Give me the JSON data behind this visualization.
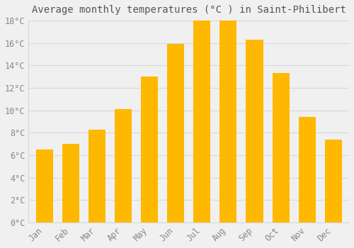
{
  "months": [
    "Jan",
    "Feb",
    "Mar",
    "Apr",
    "May",
    "Jun",
    "Jul",
    "Aug",
    "Sep",
    "Oct",
    "Nov",
    "Dec"
  ],
  "values": [
    6.5,
    7.0,
    8.3,
    10.1,
    13.0,
    15.9,
    18.0,
    18.0,
    16.3,
    13.3,
    9.4,
    7.4
  ],
  "bar_color_top": "#FFB800",
  "bar_color_bot": "#FFD060",
  "background_color": "#F0F0F0",
  "grid_color": "#D8D8D8",
  "title": "Average monthly temperatures (°C ) in Saint-Philibert",
  "title_fontsize": 10,
  "tick_label_color": "#888888",
  "title_color": "#555555",
  "ylim": [
    0,
    18
  ],
  "ytick_values": [
    0,
    2,
    4,
    6,
    8,
    10,
    12,
    14,
    16,
    18
  ],
  "font_family": "monospace"
}
